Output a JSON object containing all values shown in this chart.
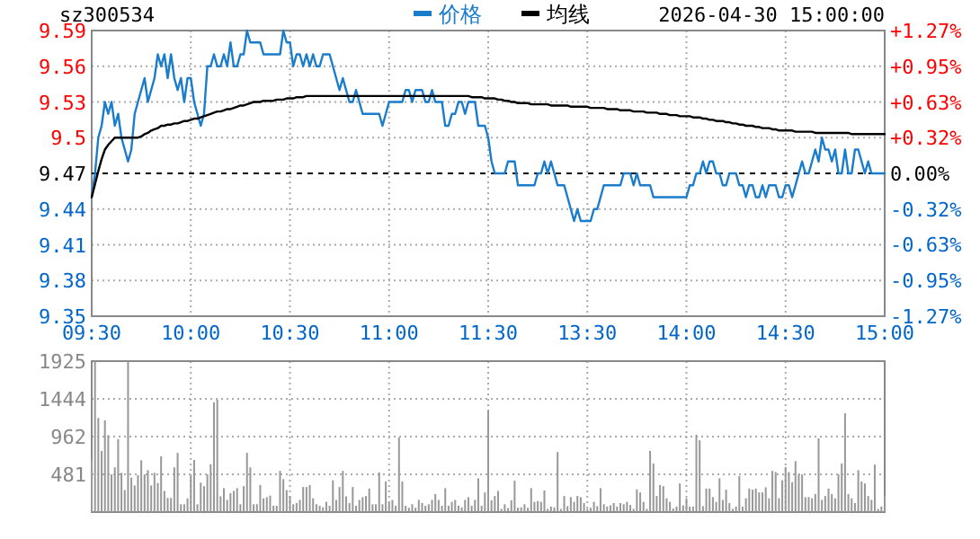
{
  "chart_data": [
    {
      "type": "line",
      "title": "sz300534",
      "subtitle": "2026-04-30 15:00:00",
      "legend": "top",
      "grid": true,
      "categories": [
        "09:30",
        null,
        null,
        null,
        null,
        null,
        null,
        null,
        null,
        null,
        null,
        null,
        null,
        null,
        null,
        null,
        null,
        null,
        null,
        null,
        null,
        null,
        null,
        null,
        null,
        null,
        null,
        null,
        null,
        null,
        "10:00",
        null,
        null,
        null,
        null,
        null,
        null,
        null,
        null,
        null,
        null,
        null,
        null,
        null,
        null,
        null,
        null,
        null,
        null,
        null,
        null,
        null,
        null,
        null,
        null,
        null,
        null,
        null,
        null,
        null,
        "10:30",
        null,
        null,
        null,
        null,
        null,
        null,
        null,
        null,
        null,
        null,
        null,
        null,
        null,
        null,
        null,
        null,
        null,
        null,
        null,
        null,
        null,
        null,
        null,
        null,
        null,
        null,
        null,
        null,
        null,
        "11:00",
        null,
        null,
        null,
        null,
        null,
        null,
        null,
        null,
        null,
        null,
        null,
        null,
        null,
        null,
        null,
        null,
        null,
        null,
        null,
        null,
        null,
        null,
        null,
        null,
        null,
        null,
        null,
        null,
        null,
        "11:30",
        null,
        null,
        null,
        null,
        null,
        null,
        null,
        null,
        null,
        null,
        null,
        null,
        null,
        null,
        null,
        null,
        null,
        null,
        null,
        null,
        null,
        null,
        null,
        null,
        null,
        null,
        null,
        null,
        null,
        "13:30",
        null,
        null,
        null,
        null,
        null,
        null,
        null,
        null,
        null,
        null,
        null,
        null,
        null,
        null,
        null,
        null,
        null,
        null,
        null,
        null,
        null,
        null,
        null,
        null,
        null,
        null,
        null,
        null,
        null,
        "14:00",
        null,
        null,
        null,
        null,
        null,
        null,
        null,
        null,
        null,
        null,
        null,
        null,
        null,
        null,
        null,
        null,
        null,
        null,
        null,
        null,
        null,
        null,
        null,
        null,
        null,
        null,
        null,
        null,
        null,
        "14:30",
        null,
        null,
        null,
        null,
        null,
        null,
        null,
        null,
        null,
        null,
        null,
        null,
        null,
        null,
        null,
        null,
        null,
        null,
        null,
        null,
        null,
        null,
        null,
        null,
        null,
        null,
        null,
        null,
        null,
        "15:00"
      ],
      "ylim": [
        9.35,
        9.59
      ],
      "yticks": [
        9.35,
        9.38,
        9.41,
        9.44,
        9.47,
        9.5,
        9.53,
        9.56,
        9.59
      ],
      "y2lim": [
        -1.27,
        1.27
      ],
      "y2ticks": [
        {
          "value": -1.27,
          "label": "-1.27%"
        },
        {
          "value": -0.95,
          "label": "-0.95%"
        },
        {
          "value": -0.63,
          "label": "-0.63%"
        },
        {
          "value": -0.32,
          "label": "-0.32%"
        },
        {
          "value": 0,
          "label": "0.00%"
        },
        {
          "value": 0.32,
          "label": "+0.32%"
        },
        {
          "value": 0.63,
          "label": "+0.63%"
        },
        {
          "value": 0.95,
          "label": "+0.95%"
        },
        {
          "value": 1.27,
          "label": "+1.27%"
        }
      ],
      "ref_lines": [
        {
          "axis": "y",
          "value": 9.47,
          "color": "#000000",
          "line_style": "dashed"
        }
      ],
      "series": [
        {
          "name": "价格",
          "color": "#1a7ccc",
          "values": [
            9.45,
            9.47,
            9.5,
            9.51,
            9.53,
            9.52,
            9.53,
            9.51,
            9.52,
            9.5,
            9.49,
            9.48,
            9.49,
            9.52,
            9.53,
            9.54,
            9.55,
            9.53,
            9.54,
            9.55,
            9.57,
            9.56,
            9.57,
            9.55,
            9.57,
            9.55,
            9.54,
            9.55,
            9.53,
            9.55,
            9.55,
            9.53,
            9.52,
            9.51,
            9.52,
            9.56,
            9.56,
            9.57,
            9.56,
            9.56,
            9.57,
            9.56,
            9.58,
            9.56,
            9.56,
            9.57,
            9.57,
            9.59,
            9.58,
            9.58,
            9.58,
            9.58,
            9.57,
            9.57,
            9.57,
            9.57,
            9.57,
            9.57,
            9.59,
            9.58,
            9.58,
            9.56,
            9.57,
            9.57,
            9.56,
            9.57,
            9.56,
            9.57,
            9.56,
            9.56,
            9.57,
            9.57,
            9.57,
            9.56,
            9.55,
            9.54,
            9.55,
            9.54,
            9.53,
            9.53,
            9.54,
            9.53,
            9.52,
            9.52,
            9.52,
            9.52,
            9.52,
            9.52,
            9.51,
            9.52,
            9.53,
            9.53,
            9.53,
            9.53,
            9.53,
            9.54,
            9.54,
            9.53,
            9.54,
            9.54,
            9.54,
            9.53,
            9.53,
            9.54,
            9.53,
            9.53,
            9.53,
            9.51,
            9.51,
            9.52,
            9.52,
            9.53,
            9.53,
            9.52,
            9.53,
            9.53,
            9.53,
            9.51,
            9.51,
            9.51,
            9.5,
            9.48,
            9.47,
            9.47,
            9.47,
            9.47,
            9.48,
            9.48,
            9.48,
            9.46,
            9.46,
            9.46,
            9.46,
            9.46,
            9.46,
            9.47,
            9.47,
            9.48,
            9.47,
            9.48,
            9.47,
            9.46,
            9.46,
            9.46,
            9.45,
            9.44,
            9.43,
            9.44,
            9.43,
            9.43,
            9.43,
            9.43,
            9.44,
            9.44,
            9.45,
            9.46,
            9.46,
            9.46,
            9.46,
            9.46,
            9.46,
            9.47,
            9.47,
            9.47,
            9.46,
            9.47,
            9.46,
            9.46,
            9.46,
            9.46,
            9.45,
            9.45,
            9.45,
            9.45,
            9.45,
            9.45,
            9.45,
            9.45,
            9.45,
            9.45,
            9.45,
            9.46,
            9.46,
            9.47,
            9.47,
            9.48,
            9.47,
            9.48,
            9.48,
            9.47,
            9.47,
            9.46,
            9.46,
            9.47,
            9.47,
            9.47,
            9.46,
            9.46,
            9.45,
            9.46,
            9.46,
            9.45,
            9.45,
            9.46,
            9.45,
            9.46,
            9.46,
            9.46,
            9.45,
            9.45,
            9.46,
            9.46,
            9.45,
            9.46,
            9.47,
            9.48,
            9.47,
            9.47,
            9.48,
            9.49,
            9.48,
            9.5,
            9.49,
            9.49,
            9.48,
            9.49,
            9.47,
            9.47,
            9.49,
            9.47,
            9.47,
            9.49,
            9.49,
            9.48,
            9.47,
            9.48,
            9.47,
            9.47,
            9.47,
            9.47,
            9.47
          ]
        },
        {
          "name": "均线",
          "color": "#000000",
          "values": [
            9.45,
            9.461,
            9.472,
            9.482,
            9.49,
            9.494,
            9.497,
            9.5,
            9.5,
            9.5,
            9.5,
            9.5,
            9.5,
            9.5,
            9.5,
            9.501,
            9.503,
            9.504,
            9.506,
            9.507,
            9.508,
            9.51,
            9.51,
            9.511,
            9.511,
            9.512,
            9.512,
            9.513,
            9.514,
            9.514,
            9.515,
            9.516,
            9.516,
            9.517,
            9.518,
            9.519,
            9.52,
            9.521,
            9.522,
            9.522,
            9.523,
            9.524,
            9.524,
            9.525,
            9.526,
            9.527,
            9.527,
            9.528,
            9.529,
            9.53,
            9.53,
            9.53,
            9.531,
            9.531,
            9.531,
            9.531,
            9.532,
            9.532,
            9.532,
            9.533,
            9.533,
            9.533,
            9.534,
            9.534,
            9.534,
            9.535,
            9.535,
            9.535,
            9.535,
            9.535,
            9.535,
            9.535,
            9.535,
            9.535,
            9.535,
            9.535,
            9.535,
            9.535,
            9.535,
            9.535,
            9.535,
            9.535,
            9.535,
            9.535,
            9.535,
            9.535,
            9.535,
            9.535,
            9.535,
            9.535,
            9.535,
            9.535,
            9.535,
            9.535,
            9.535,
            9.535,
            9.535,
            9.535,
            9.535,
            9.535,
            9.535,
            9.535,
            9.535,
            9.535,
            9.535,
            9.535,
            9.535,
            9.535,
            9.535,
            9.535,
            9.535,
            9.535,
            9.535,
            9.535,
            9.535,
            9.534,
            9.534,
            9.534,
            9.534,
            9.533,
            9.533,
            9.533,
            9.533,
            9.532,
            9.532,
            9.531,
            9.531,
            9.53,
            9.53,
            9.529,
            9.529,
            9.529,
            9.529,
            9.528,
            9.528,
            9.528,
            9.528,
            9.528,
            9.528,
            9.527,
            9.527,
            9.527,
            9.527,
            9.527,
            9.527,
            9.526,
            9.526,
            9.526,
            9.526,
            9.526,
            9.526,
            9.525,
            9.525,
            9.525,
            9.525,
            9.525,
            9.524,
            9.524,
            9.524,
            9.524,
            9.523,
            9.523,
            9.523,
            9.523,
            9.522,
            9.522,
            9.522,
            9.522,
            9.521,
            9.521,
            9.521,
            9.521,
            9.52,
            9.52,
            9.52,
            9.519,
            9.519,
            9.519,
            9.518,
            9.518,
            9.518,
            9.518,
            9.517,
            9.517,
            9.517,
            9.516,
            9.516,
            9.515,
            9.515,
            9.514,
            9.514,
            9.514,
            9.513,
            9.513,
            9.512,
            9.512,
            9.511,
            9.511,
            9.51,
            9.51,
            9.51,
            9.509,
            9.509,
            9.508,
            9.508,
            9.508,
            9.507,
            9.507,
            9.506,
            9.506,
            9.506,
            9.506,
            9.506,
            9.505,
            9.505,
            9.505,
            9.505,
            9.505,
            9.505,
            9.504,
            9.504,
            9.504,
            9.504,
            9.504,
            9.504,
            9.504,
            9.504,
            9.504,
            9.504,
            9.504,
            9.503,
            9.503,
            9.503,
            9.503,
            9.503,
            9.503,
            9.503,
            9.503,
            9.503,
            9.503,
            9.503
          ]
        }
      ]
    },
    {
      "type": "bar",
      "grid": true,
      "tick_labels": "y",
      "categories": [
        null,
        null,
        null,
        null,
        null,
        null,
        null,
        null,
        null,
        null,
        null,
        null,
        null,
        null,
        null,
        null,
        null,
        null,
        null,
        null,
        null,
        null,
        null,
        null,
        null,
        null,
        null,
        null,
        null,
        null,
        null,
        null,
        null,
        null,
        null,
        null,
        null,
        null,
        null,
        null,
        null,
        null,
        null,
        null,
        null,
        null,
        null,
        null,
        null,
        null,
        null,
        null,
        null,
        null,
        null,
        null,
        null,
        null,
        null,
        null,
        null,
        null,
        null,
        null,
        null,
        null,
        null,
        null,
        null,
        null,
        null,
        null,
        null,
        null,
        null,
        null,
        null,
        null,
        null,
        null,
        null,
        null,
        null,
        null,
        null,
        null,
        null,
        null,
        null,
        null,
        null,
        null,
        null,
        null,
        null,
        null,
        null,
        null,
        null,
        null,
        null,
        null,
        null,
        null,
        null,
        null,
        null,
        null,
        null,
        null,
        null,
        null,
        null,
        null,
        null,
        null,
        null,
        null,
        null,
        null,
        null,
        null,
        null,
        null,
        null,
        null,
        null,
        null,
        null,
        null,
        null,
        null,
        null,
        null,
        null,
        null,
        null,
        null,
        null,
        null,
        null,
        null,
        null,
        null,
        null,
        null,
        null,
        null,
        null,
        null,
        null,
        null,
        null,
        null,
        null,
        null,
        null,
        null,
        null,
        null,
        null,
        null,
        null,
        null,
        null,
        null,
        null,
        null,
        null,
        null,
        null,
        null,
        null,
        null,
        null,
        null,
        null,
        null,
        null,
        null,
        null,
        null,
        null,
        null,
        null,
        null,
        null,
        null,
        null,
        null,
        null,
        null,
        null,
        null,
        null,
        null,
        null,
        null,
        null,
        null,
        null,
        null,
        null,
        null,
        null,
        null,
        null,
        null,
        null,
        null,
        null,
        null,
        null,
        null,
        null,
        null,
        null,
        null,
        null,
        null,
        null,
        null,
        null,
        null,
        null,
        null,
        null,
        null,
        null,
        null,
        null,
        null,
        null,
        null,
        null,
        null,
        null,
        null,
        null,
        null,
        null
      ],
      "ylim": [
        0,
        1925
      ],
      "yticks": [
        481,
        962,
        1444,
        1925
      ],
      "series": [
        {
          "color": "#999999",
          "values": [
            670,
            1925,
            1200,
            780,
            1170,
            980,
            480,
            570,
            930,
            500,
            280,
            1925,
            440,
            340,
            470,
            660,
            480,
            535,
            340,
            500,
            370,
            710,
            270,
            180,
            180,
            570,
            755,
            100,
            100,
            175,
            460,
            665,
            100,
            375,
            330,
            480,
            610,
            1400,
            1435,
            200,
            305,
            155,
            240,
            270,
            305,
            100,
            330,
            755,
            570,
            100,
            100,
            345,
            175,
            190,
            210,
            80,
            80,
            525,
            420,
            280,
            200,
            100,
            115,
            155,
            320,
            320,
            345,
            175,
            100,
            80,
            60,
            130,
            80,
            405,
            155,
            320,
            525,
            200,
            115,
            320,
            80,
            155,
            190,
            205,
            300,
            100,
            100,
            505,
            100,
            390,
            130,
            155,
            80,
            950,
            390,
            80,
            55,
            100,
            55,
            155,
            115,
            80,
            100,
            155,
            230,
            155,
            80,
            305,
            80,
            130,
            155,
            80,
            60,
            155,
            190,
            80,
            155,
            430,
            80,
            250,
            1299,
            150,
            205,
            270,
            40,
            100,
            50,
            150,
            400,
            55,
            60,
            100,
            55,
            305,
            130,
            140,
            130,
            275,
            40,
            70,
            60,
            765,
            40,
            205,
            75,
            190,
            130,
            205,
            190,
            115,
            40,
            55,
            130,
            75,
            305,
            100,
            70,
            85,
            115,
            70,
            115,
            100,
            130,
            90,
            40,
            290,
            250,
            130,
            40,
            780,
            620,
            205,
            345,
            330,
            175,
            130,
            45,
            70,
            365,
            85,
            175,
            70,
            70,
            985,
            915,
            75,
            300,
            300,
            190,
            130,
            430,
            155,
            285,
            115,
            40,
            70,
            460,
            70,
            175,
            300,
            285,
            300,
            250,
            250,
            315,
            175,
            525,
            510,
            175,
            405,
            575,
            510,
            380,
            650,
            480,
            480,
            190,
            190,
            175,
            230,
            940,
            155,
            205,
            300,
            230,
            175,
            480,
            620,
            1260,
            230,
            175,
            115,
            535,
            390,
            365,
            205,
            155,
            605,
            40,
            70,
            205
          ]
        }
      ]
    }
  ]
}
